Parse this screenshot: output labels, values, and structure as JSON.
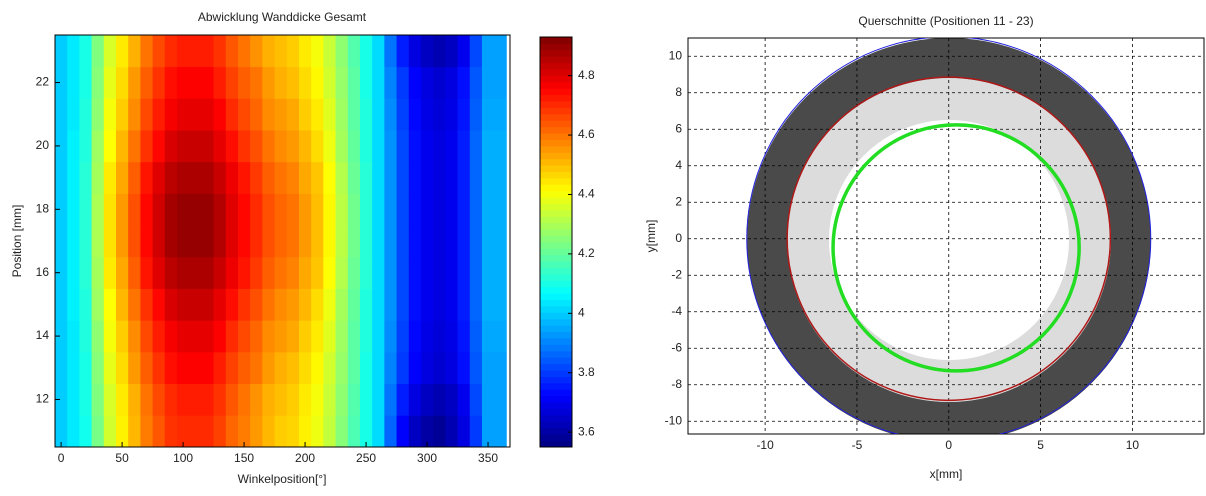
{
  "chart_data": [
    {
      "type": "heatmap",
      "title": "Abwicklung Wanddicke Gesamt",
      "x_label": "Winkelposition[°]",
      "y_label": "Position [mm]",
      "xlim": [
        -5,
        368
      ],
      "ylim": [
        10.5,
        23.5
      ],
      "xticks": [
        0,
        50,
        100,
        150,
        200,
        250,
        300,
        350
      ],
      "yticks": [
        12,
        14,
        16,
        18,
        20,
        22
      ],
      "xbins": [
        -5,
        5,
        15,
        25,
        35,
        45,
        55,
        65,
        75,
        85,
        95,
        105,
        115,
        125,
        135,
        145,
        155,
        165,
        175,
        185,
        195,
        205,
        215,
        225,
        235,
        245,
        255,
        265,
        275,
        285,
        295,
        305,
        315,
        325,
        335,
        345,
        365
      ],
      "ybins": [
        10.5,
        11.5,
        12.5,
        13.5,
        14.5,
        15.5,
        16.5,
        17.5,
        18.5,
        19.5,
        20.5,
        21.5,
        22.5,
        23.5
      ],
      "colormap": "jet",
      "clim": [
        3.55,
        4.93
      ],
      "colorbar_ticks": [
        3.6,
        3.8,
        4,
        4.2,
        4.4,
        4.6,
        4.8
      ],
      "z": [
        [
          4.0,
          4.04,
          4.09,
          4.23,
          4.35,
          4.43,
          4.51,
          4.59,
          4.64,
          4.69,
          4.7,
          4.7,
          4.7,
          4.67,
          4.62,
          4.59,
          4.55,
          4.51,
          4.48,
          4.47,
          4.43,
          4.39,
          4.33,
          4.25,
          4.17,
          4.1,
          4.02,
          3.86,
          3.72,
          3.64,
          3.6,
          3.58,
          3.62,
          3.68,
          3.8,
          3.94
        ],
        [
          4.0,
          4.04,
          4.1,
          4.24,
          4.36,
          4.44,
          4.52,
          4.6,
          4.66,
          4.7,
          4.72,
          4.72,
          4.72,
          4.69,
          4.64,
          4.6,
          4.56,
          4.52,
          4.5,
          4.48,
          4.44,
          4.4,
          4.34,
          4.26,
          4.18,
          4.1,
          4.02,
          3.88,
          3.76,
          3.68,
          3.64,
          3.62,
          3.64,
          3.7,
          3.82,
          3.94
        ],
        [
          4.0,
          4.04,
          4.1,
          4.25,
          4.38,
          4.46,
          4.55,
          4.63,
          4.69,
          4.74,
          4.76,
          4.76,
          4.76,
          4.72,
          4.67,
          4.63,
          4.6,
          4.55,
          4.52,
          4.5,
          4.46,
          4.42,
          4.35,
          4.27,
          4.19,
          4.1,
          4.02,
          3.9,
          3.8,
          3.72,
          3.68,
          3.66,
          3.68,
          3.74,
          3.84,
          3.94
        ],
        [
          4.0,
          4.04,
          4.11,
          4.26,
          4.4,
          4.48,
          4.57,
          4.66,
          4.72,
          4.77,
          4.79,
          4.79,
          4.79,
          4.76,
          4.7,
          4.66,
          4.62,
          4.57,
          4.55,
          4.53,
          4.48,
          4.44,
          4.37,
          4.28,
          4.19,
          4.11,
          4.02,
          3.91,
          3.81,
          3.73,
          3.69,
          3.67,
          3.69,
          3.75,
          3.85,
          3.95
        ],
        [
          4.0,
          4.05,
          4.11,
          4.28,
          4.41,
          4.51,
          4.6,
          4.69,
          4.75,
          4.81,
          4.83,
          4.83,
          4.83,
          4.79,
          4.74,
          4.69,
          4.65,
          4.6,
          4.57,
          4.55,
          4.51,
          4.46,
          4.39,
          4.29,
          4.2,
          4.11,
          4.02,
          3.92,
          3.82,
          3.74,
          3.7,
          3.68,
          3.7,
          3.76,
          3.86,
          3.96
        ],
        [
          4.0,
          4.05,
          4.12,
          4.29,
          4.44,
          4.53,
          4.63,
          4.73,
          4.8,
          4.85,
          4.87,
          4.87,
          4.87,
          4.83,
          4.78,
          4.73,
          4.68,
          4.63,
          4.6,
          4.58,
          4.53,
          4.49,
          4.41,
          4.31,
          4.21,
          4.12,
          4.02,
          3.92,
          3.82,
          3.74,
          3.7,
          3.68,
          3.7,
          3.76,
          3.86,
          3.96
        ],
        [
          4.0,
          4.05,
          4.12,
          4.3,
          4.45,
          4.55,
          4.65,
          4.75,
          4.82,
          4.88,
          4.9,
          4.9,
          4.9,
          4.86,
          4.8,
          4.75,
          4.7,
          4.65,
          4.62,
          4.6,
          4.55,
          4.5,
          4.42,
          4.32,
          4.22,
          4.12,
          4.02,
          3.92,
          3.82,
          3.74,
          3.7,
          3.68,
          3.7,
          3.76,
          3.86,
          3.96
        ],
        [
          4.0,
          4.05,
          4.12,
          4.3,
          4.45,
          4.55,
          4.65,
          4.75,
          4.82,
          4.88,
          4.9,
          4.9,
          4.9,
          4.86,
          4.8,
          4.75,
          4.7,
          4.65,
          4.62,
          4.6,
          4.55,
          4.5,
          4.42,
          4.32,
          4.22,
          4.12,
          4.02,
          3.92,
          3.82,
          3.74,
          3.7,
          3.68,
          3.7,
          3.76,
          3.86,
          3.96
        ],
        [
          4.0,
          4.05,
          4.12,
          4.29,
          4.44,
          4.53,
          4.63,
          4.73,
          4.8,
          4.85,
          4.87,
          4.87,
          4.87,
          4.83,
          4.78,
          4.73,
          4.68,
          4.63,
          4.6,
          4.58,
          4.53,
          4.49,
          4.41,
          4.31,
          4.21,
          4.12,
          4.02,
          3.92,
          3.82,
          3.74,
          3.7,
          3.68,
          3.7,
          3.76,
          3.86,
          3.96
        ],
        [
          4.0,
          4.05,
          4.11,
          4.28,
          4.41,
          4.51,
          4.6,
          4.69,
          4.75,
          4.81,
          4.83,
          4.83,
          4.83,
          4.79,
          4.74,
          4.69,
          4.65,
          4.6,
          4.57,
          4.55,
          4.51,
          4.46,
          4.39,
          4.29,
          4.2,
          4.11,
          4.02,
          3.92,
          3.82,
          3.74,
          3.7,
          3.68,
          3.7,
          3.76,
          3.86,
          3.96
        ],
        [
          4.0,
          4.04,
          4.11,
          4.26,
          4.4,
          4.48,
          4.57,
          4.66,
          4.72,
          4.77,
          4.79,
          4.79,
          4.79,
          4.76,
          4.7,
          4.66,
          4.62,
          4.57,
          4.55,
          4.53,
          4.48,
          4.44,
          4.37,
          4.28,
          4.19,
          4.11,
          4.02,
          3.91,
          3.81,
          3.73,
          3.69,
          3.67,
          3.69,
          3.75,
          3.85,
          3.95
        ],
        [
          4.0,
          4.04,
          4.1,
          4.25,
          4.38,
          4.46,
          4.55,
          4.63,
          4.69,
          4.74,
          4.76,
          4.76,
          4.76,
          4.72,
          4.67,
          4.63,
          4.6,
          4.55,
          4.52,
          4.5,
          4.46,
          4.42,
          4.35,
          4.27,
          4.19,
          4.1,
          4.02,
          3.9,
          3.8,
          3.72,
          3.68,
          3.66,
          3.68,
          3.74,
          3.84,
          3.94
        ],
        [
          4.0,
          4.04,
          4.1,
          4.24,
          4.36,
          4.44,
          4.52,
          4.6,
          4.66,
          4.7,
          4.72,
          4.72,
          4.72,
          4.69,
          4.64,
          4.6,
          4.56,
          4.52,
          4.5,
          4.48,
          4.44,
          4.4,
          4.34,
          4.26,
          4.18,
          4.1,
          4.02,
          3.88,
          3.76,
          3.68,
          3.64,
          3.62,
          3.64,
          3.7,
          3.82,
          3.94
        ]
      ]
    },
    {
      "type": "circle",
      "title": "Querschnitte (Positionen 11 - 23)",
      "x_label": "x[mm]",
      "y_label": "y[mm]",
      "xlim": [
        -14.2,
        13.9
      ],
      "ylim": [
        -10.7,
        11
      ],
      "xticks": [
        -10,
        -5,
        0,
        5,
        10
      ],
      "yticks": [
        -10,
        -8,
        -6,
        -4,
        -2,
        0,
        2,
        4,
        6,
        8,
        10
      ],
      "grid": true,
      "series": [
        {
          "color": "#2020e0",
          "cx": 0,
          "cy": 0,
          "r": 11,
          "width": 1
        },
        {
          "color": "#b01818",
          "cx": 0,
          "cy": 0,
          "r": 8.8,
          "width": 1.5
        },
        {
          "color": "#22dd22",
          "cx": 0.4,
          "cy": -0.5,
          "r": 6.7,
          "width": 3.5
        }
      ]
    }
  ]
}
